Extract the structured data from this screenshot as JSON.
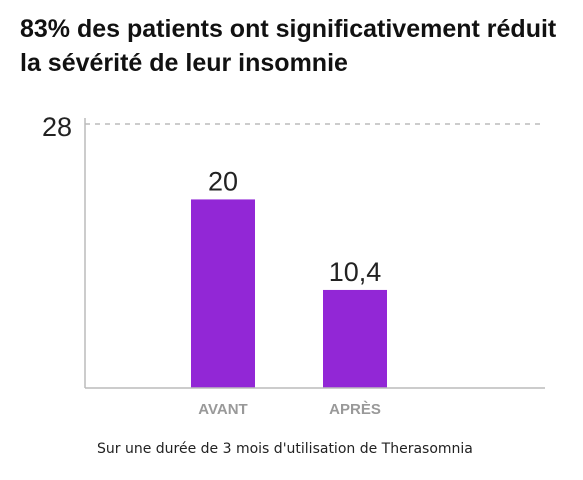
{
  "title": "83% des patients ont significativement réduit la sévérité de leur insomnie",
  "footnote": "Sur une durée de 3 mois d'utilisation de Therasomnia",
  "colors": {
    "bar": "#9227D6",
    "axis": "#bbbbbb",
    "gridline": "#bbbbbb",
    "text": "#111111",
    "category": "#999999"
  },
  "chart_data": {
    "type": "bar",
    "categories": [
      "AVANT",
      "APRÈS"
    ],
    "values": [
      20,
      10.4
    ],
    "value_labels": [
      "20",
      "10,4"
    ],
    "ylim": [
      0,
      28
    ],
    "y_ticks": [
      "28"
    ],
    "reference_line": 28,
    "grid": false,
    "xlabel": "",
    "ylabel": ""
  }
}
